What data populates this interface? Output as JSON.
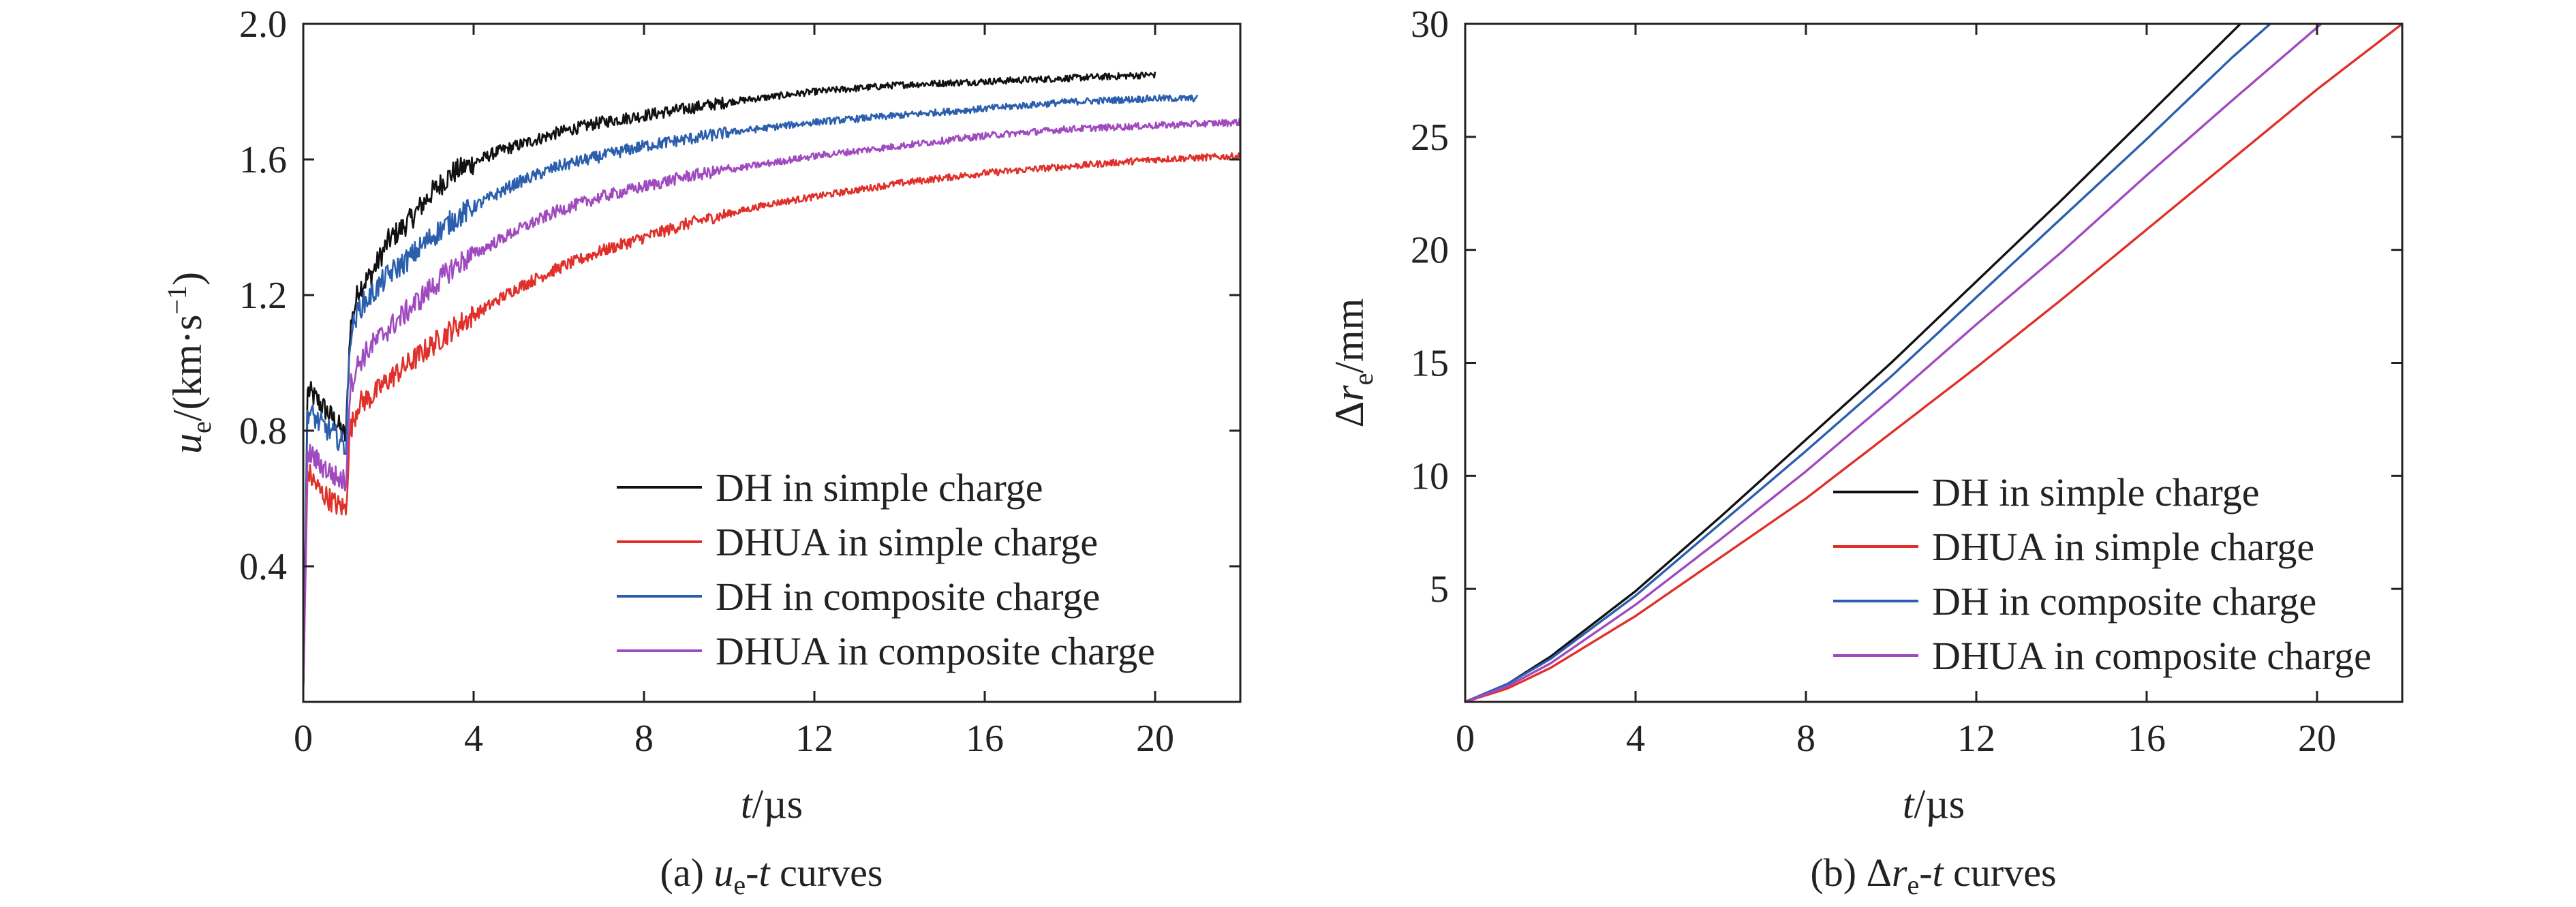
{
  "chart_data": [
    {
      "type": "line",
      "panel": "a",
      "caption_prefix": "(a) ",
      "caption_var1": "u",
      "caption_sub": "e",
      "caption_mid": "-",
      "caption_var2": "t",
      "caption_suffix": " curves",
      "xlabel_var": "t",
      "xlabel_unit": "/µs",
      "ylabel_var": "u",
      "ylabel_sub": "e",
      "ylabel_unit": "/(km·s",
      "ylabel_sup": "−1",
      "ylabel_close": ")",
      "xlim": [
        0,
        22
      ],
      "ylim": [
        0,
        2.0
      ],
      "x_ticks": [
        0,
        4,
        8,
        12,
        16,
        20
      ],
      "x_tick_labels": [
        "0",
        "4",
        "8",
        "12",
        "16",
        "20"
      ],
      "y_ticks": [
        0.4,
        0.8,
        1.2,
        1.6,
        2.0
      ],
      "y_tick_labels": [
        "0.4",
        "0.8",
        "1.2",
        "1.6",
        "2.0"
      ],
      "noisy": true,
      "legend_position": "bottom-right",
      "series": [
        {
          "name": "DH in simple charge",
          "color": "#111111",
          "x": [
            0,
            0.1,
            0.4,
            0.8,
            1.0,
            1.1,
            1.3,
            1.6,
            2.0,
            2.5,
            3.0,
            3.5,
            4.0,
            4.5,
            5.0,
            6.0,
            7.0,
            8.0,
            9.0,
            10.0,
            12.0,
            14.0,
            16.0,
            18.0,
            20.0
          ],
          "y": [
            0.02,
            0.92,
            0.88,
            0.82,
            0.78,
            1.1,
            1.22,
            1.26,
            1.36,
            1.42,
            1.5,
            1.56,
            1.59,
            1.62,
            1.64,
            1.68,
            1.71,
            1.73,
            1.75,
            1.77,
            1.8,
            1.82,
            1.83,
            1.84,
            1.85
          ]
        },
        {
          "name": "DHUA in simple charge",
          "color": "#e0302a",
          "x": [
            0,
            0.1,
            0.4,
            0.8,
            1.0,
            1.1,
            1.3,
            1.6,
            2.0,
            2.5,
            3.0,
            3.5,
            4.0,
            5.0,
            6.0,
            7.0,
            8.0,
            9.0,
            10.0,
            11.0,
            12.0,
            14.0,
            16.0,
            18.0,
            20.0,
            22.0
          ],
          "y": [
            0.02,
            0.68,
            0.62,
            0.58,
            0.57,
            0.8,
            0.88,
            0.9,
            0.95,
            1.0,
            1.05,
            1.1,
            1.14,
            1.22,
            1.28,
            1.33,
            1.37,
            1.41,
            1.44,
            1.47,
            1.49,
            1.53,
            1.56,
            1.58,
            1.6,
            1.61
          ]
        },
        {
          "name": "DH in composite charge",
          "color": "#2b5fae",
          "x": [
            0,
            0.1,
            0.4,
            0.8,
            1.0,
            1.1,
            1.3,
            1.6,
            2.0,
            2.5,
            3.0,
            3.5,
            4.0,
            5.0,
            6.0,
            7.0,
            8.0,
            9.0,
            10.0,
            12.0,
            14.0,
            16.0,
            18.0,
            20.0,
            21.0
          ],
          "y": [
            0.02,
            0.86,
            0.82,
            0.78,
            0.75,
            1.08,
            1.16,
            1.2,
            1.26,
            1.31,
            1.37,
            1.42,
            1.46,
            1.53,
            1.58,
            1.61,
            1.64,
            1.66,
            1.68,
            1.71,
            1.73,
            1.75,
            1.77,
            1.78,
            1.78
          ]
        },
        {
          "name": "DHUA in composite charge",
          "color": "#a04ac0",
          "x": [
            0,
            0.1,
            0.4,
            0.8,
            1.0,
            1.1,
            1.3,
            1.6,
            2.0,
            2.5,
            3.0,
            3.5,
            4.0,
            5.0,
            6.0,
            7.0,
            8.0,
            9.0,
            10.0,
            12.0,
            14.0,
            16.0,
            18.0,
            20.0,
            22.0
          ],
          "y": [
            0.02,
            0.74,
            0.7,
            0.66,
            0.65,
            0.93,
            1.0,
            1.05,
            1.1,
            1.16,
            1.22,
            1.28,
            1.32,
            1.39,
            1.45,
            1.49,
            1.52,
            1.55,
            1.57,
            1.61,
            1.64,
            1.67,
            1.69,
            1.7,
            1.71
          ]
        }
      ]
    },
    {
      "type": "line",
      "panel": "b",
      "caption_prefix": "(b) Δ",
      "caption_var1": "r",
      "caption_sub": "e",
      "caption_mid": "-",
      "caption_var2": "t",
      "caption_suffix": " curves",
      "xlabel_var": "t",
      "xlabel_unit": "/µs",
      "ylabel_prefix": "Δ",
      "ylabel_var": "r",
      "ylabel_sub": "e",
      "ylabel_unit": "/mm",
      "xlim": [
        0,
        22
      ],
      "ylim": [
        0,
        30
      ],
      "x_ticks": [
        0,
        4,
        8,
        12,
        16,
        20
      ],
      "x_tick_labels": [
        "0",
        "4",
        "8",
        "12",
        "16",
        "20"
      ],
      "y_ticks": [
        5,
        10,
        15,
        20,
        25,
        30
      ],
      "y_tick_labels": [
        "5",
        "10",
        "15",
        "20",
        "25",
        "30"
      ],
      "noisy": false,
      "legend_position": "bottom-right",
      "series": [
        {
          "name": "DH in simple charge",
          "color": "#111111",
          "x": [
            0,
            1,
            2,
            4,
            6,
            8,
            10,
            12,
            14,
            16,
            18.2
          ],
          "y": [
            0,
            0.8,
            2.0,
            4.9,
            8.2,
            11.6,
            15.0,
            18.6,
            22.2,
            25.9,
            30
          ]
        },
        {
          "name": "DHUA in simple charge",
          "color": "#e0302a",
          "x": [
            0,
            1,
            2,
            4,
            6,
            8,
            10,
            12,
            14,
            16,
            18,
            20,
            22
          ],
          "y": [
            0,
            0.6,
            1.5,
            3.8,
            6.4,
            9.0,
            11.9,
            14.8,
            17.8,
            20.9,
            24.0,
            27.1,
            30
          ]
        },
        {
          "name": "DH in composite charge",
          "color": "#2b5fae",
          "x": [
            0,
            1,
            2,
            4,
            6,
            8,
            10,
            12,
            14,
            16,
            18,
            18.9
          ],
          "y": [
            0,
            0.8,
            1.9,
            4.7,
            7.9,
            11.1,
            14.4,
            17.9,
            21.4,
            24.9,
            28.5,
            30
          ]
        },
        {
          "name": "DHUA in composite charge",
          "color": "#a04ac0",
          "x": [
            0,
            1,
            2,
            4,
            6,
            8,
            10,
            12,
            14,
            16,
            18,
            20.1
          ],
          "y": [
            0,
            0.7,
            1.7,
            4.3,
            7.2,
            10.2,
            13.4,
            16.7,
            19.9,
            23.3,
            26.6,
            30
          ]
        }
      ]
    }
  ]
}
